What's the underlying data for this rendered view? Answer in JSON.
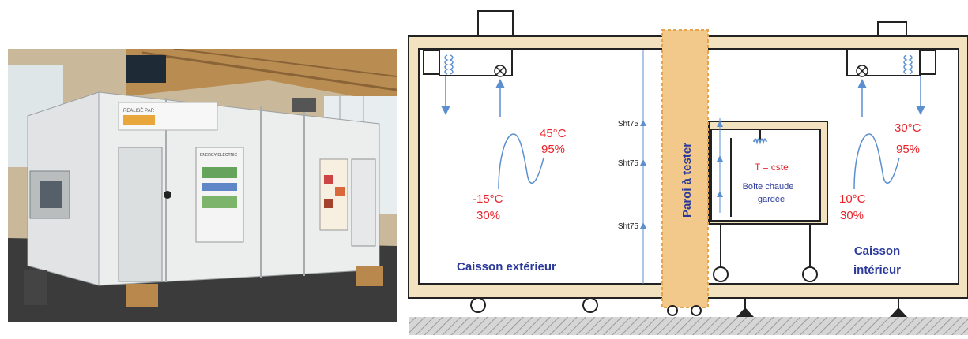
{
  "photo": {
    "sign_top": "REALISÉ PAR",
    "sign_sub": "ENERGY ELECTRIC"
  },
  "diagram": {
    "wall_label": "Paroi à tester",
    "exterior": {
      "temp_high": "45°C",
      "rh_high": "95%",
      "temp_low": "-15°C",
      "rh_low": "30%",
      "caisson_label": "Caisson extérieur"
    },
    "interior": {
      "temp_high": "30°C",
      "rh_high": "95%",
      "temp_low": "10°C",
      "rh_low": "30%",
      "caisson_label_line1": "Caisson",
      "caisson_label_line2": "intérieur"
    },
    "guarded_box": {
      "temp_label": "T = cste",
      "label_line1": "Boîte chaude",
      "label_line2": "gardée"
    },
    "sensor_labels": [
      "Sht75",
      "Sht75",
      "Sht75"
    ],
    "colors": {
      "insulation": "#f3e2c0",
      "frame": "#222222",
      "wall": "#f2c98a",
      "air_arrow": "#5b8fd0",
      "red_text": "#e8232a",
      "blue_text": "#2b3a9a",
      "ground": "#cfcfcf"
    }
  }
}
